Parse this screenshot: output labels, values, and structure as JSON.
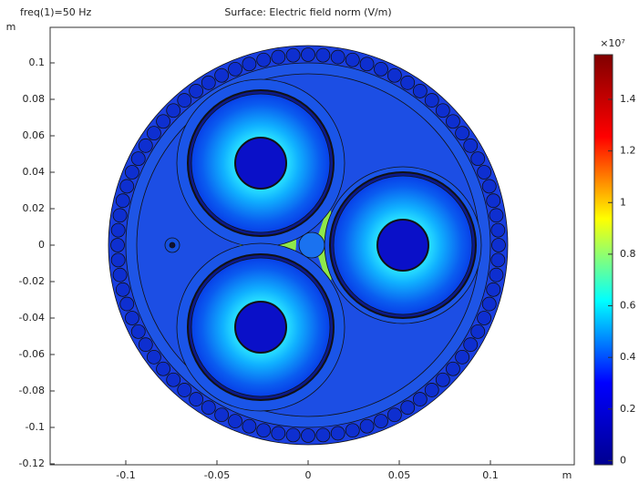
{
  "chart_data": {
    "type": "surface",
    "title": "Surface: Electric field norm (V/m)",
    "subtitle": "freq(1)=50 Hz",
    "x_label": "m",
    "y_label": "m",
    "xlim": [
      -0.1415,
      0.146
    ],
    "ylim": [
      -0.1205,
      0.1195
    ],
    "xticks": [
      -0.1,
      -0.05,
      0,
      0.05,
      0.1
    ],
    "yticks": [
      -0.12,
      -0.1,
      -0.08,
      -0.06,
      -0.04,
      -0.02,
      0,
      0.02,
      0.04,
      0.06,
      0.08,
      0.1
    ],
    "colorbar": {
      "multiplier": "×10⁷",
      "clim": [
        -0.016,
        1.573
      ],
      "ticks": [
        0,
        0.2,
        0.4,
        0.6,
        0.8,
        1,
        1.2,
        1.4
      ],
      "colors": [
        "#00008f",
        "#0000ff",
        "#00ffff",
        "#ffff00",
        "#ff0000",
        "#800000"
      ]
    }
  }
}
